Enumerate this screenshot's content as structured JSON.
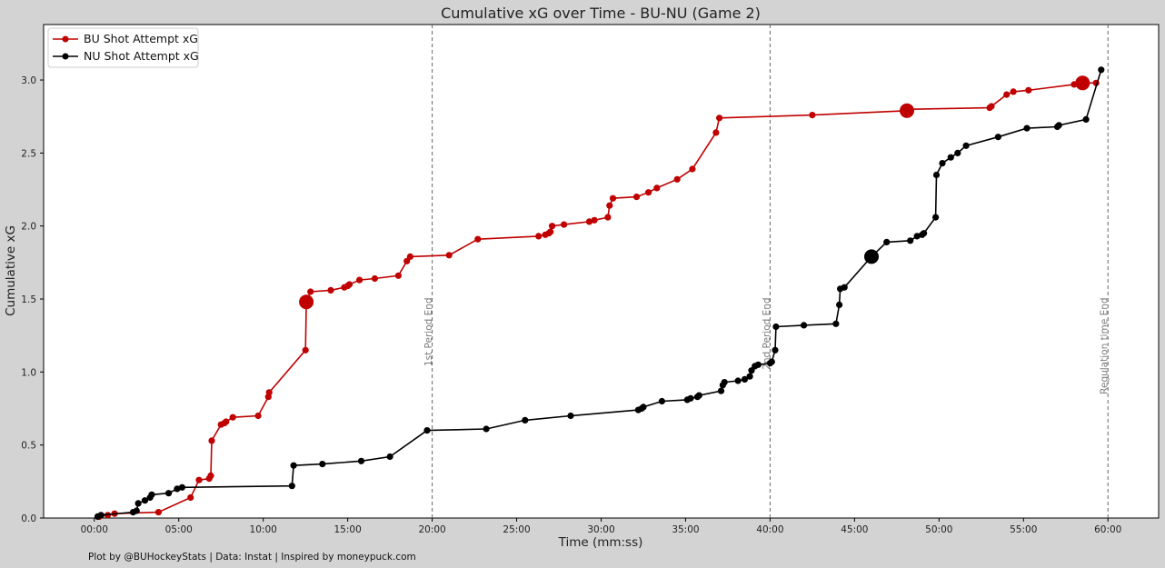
{
  "chart_data": {
    "type": "line",
    "title": "Cumulative xG over Time - BU-NU (Game 2)",
    "xlabel": "Time (mm:ss)",
    "ylabel": "Cumulative xG",
    "xlim": [
      -3,
      63
    ],
    "ylim": [
      0,
      3.38
    ],
    "x_ticks": [
      0,
      5,
      10,
      15,
      20,
      25,
      30,
      35,
      40,
      45,
      50,
      55,
      60
    ],
    "x_tick_labels": [
      "00:00",
      "05:00",
      "10:00",
      "15:00",
      "20:00",
      "25:00",
      "30:00",
      "35:00",
      "40:00",
      "45:00",
      "50:00",
      "55:00",
      "60:00"
    ],
    "y_ticks": [
      0,
      0.5,
      1.0,
      1.5,
      2.0,
      2.5,
      3.0
    ],
    "y_tick_labels": [
      "0.0",
      "0.5",
      "1.0",
      "1.5",
      "2.0",
      "2.5",
      "3.0"
    ],
    "grid": false,
    "legend_position": "top-left",
    "vertical_lines": [
      {
        "x": 20,
        "label": "1st Period End"
      },
      {
        "x": 40,
        "label": "2nd Period End"
      },
      {
        "x": 60,
        "label": "Regulation time End"
      }
    ],
    "series": [
      {
        "name": "BU Shot Attempt xG",
        "color": "#c00000",
        "x": [
          0.3,
          0.8,
          1.2,
          3.8,
          5.7,
          6.2,
          6.8,
          6.9,
          6.95,
          7.5,
          7.7,
          7.8,
          8.2,
          9.7,
          10.3,
          10.35,
          12.5,
          12.55,
          12.8,
          14.0,
          14.8,
          15.0,
          15.1,
          15.7,
          16.6,
          18.0,
          18.5,
          18.7,
          21.0,
          22.7,
          26.3,
          26.7,
          26.9,
          27.0,
          27.1,
          27.8,
          29.3,
          29.6,
          30.4,
          30.5,
          30.7,
          32.1,
          32.8,
          33.3,
          34.5,
          35.4,
          36.8,
          37.0,
          42.5,
          48.1,
          48.3,
          53.0,
          53.1,
          54.0,
          54.4,
          55.3,
          58.0,
          58.5,
          59.3
        ],
        "y": [
          0.01,
          0.02,
          0.03,
          0.04,
          0.14,
          0.26,
          0.27,
          0.29,
          0.53,
          0.64,
          0.65,
          0.66,
          0.69,
          0.7,
          0.83,
          0.86,
          1.15,
          1.48,
          1.55,
          1.56,
          1.58,
          1.59,
          1.6,
          1.63,
          1.64,
          1.66,
          1.76,
          1.79,
          1.8,
          1.91,
          1.93,
          1.94,
          1.95,
          1.96,
          2.0,
          2.01,
          2.03,
          2.04,
          2.06,
          2.14,
          2.19,
          2.2,
          2.23,
          2.26,
          2.32,
          2.39,
          2.64,
          2.74,
          2.76,
          2.79,
          2.8,
          2.81,
          2.82,
          2.9,
          2.92,
          2.93,
          2.97,
          2.98,
          2.98
        ],
        "large_markers": [
          17,
          49,
          57
        ]
      },
      {
        "name": "NU Shot Attempt xG",
        "color": "#000000",
        "x": [
          0.2,
          0.4,
          2.3,
          2.5,
          2.6,
          3.0,
          3.3,
          3.4,
          4.4,
          4.9,
          5.2,
          11.7,
          11.8,
          13.5,
          15.8,
          17.5,
          19.7,
          23.2,
          25.5,
          28.2,
          32.2,
          32.4,
          32.5,
          33.6,
          35.1,
          35.3,
          35.7,
          35.8,
          37.1,
          37.2,
          37.3,
          38.1,
          38.5,
          38.8,
          38.9,
          39.1,
          39.3,
          40.0,
          40.1,
          40.3,
          40.35,
          42.0,
          43.9,
          44.1,
          44.15,
          44.4,
          46.0,
          46.9,
          48.3,
          48.7,
          49.0,
          49.1,
          49.8,
          49.85,
          50.2,
          50.7,
          51.1,
          51.6,
          53.5,
          55.2,
          57.0,
          57.1,
          58.7,
          59.6
        ],
        "y": [
          0.01,
          0.02,
          0.04,
          0.05,
          0.1,
          0.12,
          0.14,
          0.16,
          0.17,
          0.2,
          0.21,
          0.22,
          0.36,
          0.37,
          0.39,
          0.42,
          0.6,
          0.61,
          0.67,
          0.7,
          0.74,
          0.75,
          0.76,
          0.8,
          0.81,
          0.82,
          0.83,
          0.84,
          0.87,
          0.91,
          0.93,
          0.94,
          0.95,
          0.97,
          1.01,
          1.04,
          1.05,
          1.06,
          1.07,
          1.15,
          1.31,
          1.32,
          1.33,
          1.46,
          1.57,
          1.58,
          1.79,
          1.89,
          1.9,
          1.93,
          1.94,
          1.95,
          2.06,
          2.35,
          2.43,
          2.47,
          2.5,
          2.55,
          2.61,
          2.67,
          2.68,
          2.69,
          2.73,
          3.07
        ],
        "large_markers": [
          46
        ]
      }
    ]
  },
  "footer": "Plot by @BUHockeyStats | Data: Instat | Inspired by moneypuck.com"
}
